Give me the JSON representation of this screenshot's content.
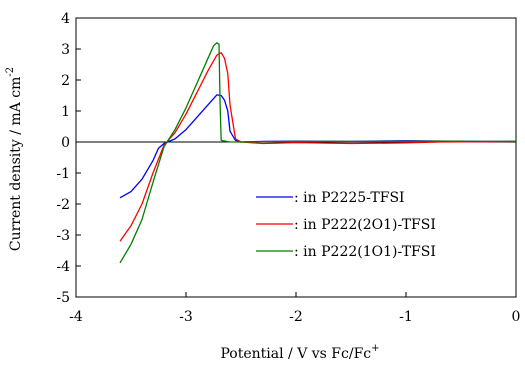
{
  "chart_data": {
    "type": "line",
    "xlabel": "Potential / V vs Fc/Fc",
    "xlabel_sup": "+",
    "ylabel": "Current density / mA cm",
    "ylabel_sup": "-2",
    "xlim": [
      -4,
      0
    ],
    "ylim": [
      -5,
      4
    ],
    "x_ticks": [
      -4,
      -3,
      -2,
      -1,
      0
    ],
    "y_ticks": [
      -5,
      -4,
      -3,
      -2,
      -1,
      0,
      1,
      2,
      3,
      4
    ],
    "x_tick_labels": [
      "-4",
      "-3",
      "-2",
      "-1",
      "0"
    ],
    "y_tick_labels": [
      "-5",
      "-4",
      "-3",
      "-2",
      "-1",
      "0",
      "1",
      "2",
      "3",
      "4"
    ],
    "grid": false,
    "legend_position": "lower-right",
    "series": [
      {
        "name": ": in P2225-TFSI",
        "color": "#0000ff",
        "x": [
          -3.6,
          -3.5,
          -3.4,
          -3.3,
          -3.25,
          -3.2,
          -3.1,
          -3.0,
          -2.9,
          -2.8,
          -2.72,
          -2.68,
          -2.65,
          -2.62,
          -2.6,
          -2.55,
          -2.5,
          -2.3,
          -2.0,
          -1.5,
          -1.0,
          -0.6,
          -0.3,
          0.0
        ],
        "y": [
          -1.8,
          -1.6,
          -1.2,
          -0.6,
          -0.2,
          -0.05,
          0.1,
          0.4,
          0.8,
          1.2,
          1.52,
          1.5,
          1.35,
          1.0,
          0.35,
          0.05,
          0.0,
          0.02,
          0.03,
          0.02,
          0.04,
          0.03,
          0.02,
          0.02
        ]
      },
      {
        "name": ": in P222(2O1)-TFSI",
        "color": "#ff0000",
        "x": [
          -3.6,
          -3.5,
          -3.4,
          -3.3,
          -3.2,
          -3.1,
          -3.0,
          -2.9,
          -2.8,
          -2.72,
          -2.68,
          -2.65,
          -2.62,
          -2.6,
          -2.55,
          -2.5,
          -2.3,
          -2.0,
          -1.5,
          -1.0,
          -0.7,
          -0.3,
          0.0
        ],
        "y": [
          -3.2,
          -2.7,
          -2.0,
          -1.0,
          -0.1,
          0.3,
          0.9,
          1.6,
          2.3,
          2.8,
          2.88,
          2.7,
          2.2,
          1.2,
          0.1,
          0.0,
          -0.05,
          -0.02,
          -0.05,
          -0.03,
          0.0,
          0.01,
          0.02
        ]
      },
      {
        "name": ": in P222(1O1)-TFSI",
        "color": "#008000",
        "x": [
          -3.6,
          -3.5,
          -3.4,
          -3.3,
          -3.2,
          -3.1,
          -3.0,
          -2.9,
          -2.8,
          -2.75,
          -2.72,
          -2.7,
          -2.69,
          -2.68,
          -2.6,
          -2.5,
          -2.3,
          -2.0,
          -1.5,
          -1.0,
          -0.7,
          -0.3,
          0.0
        ],
        "y": [
          -3.9,
          -3.3,
          -2.5,
          -1.3,
          -0.15,
          0.4,
          1.1,
          1.9,
          2.7,
          3.1,
          3.2,
          3.15,
          1.2,
          0.05,
          0.0,
          0.0,
          0.01,
          0.02,
          0.02,
          0.02,
          0.03,
          0.02,
          0.02
        ]
      }
    ]
  }
}
